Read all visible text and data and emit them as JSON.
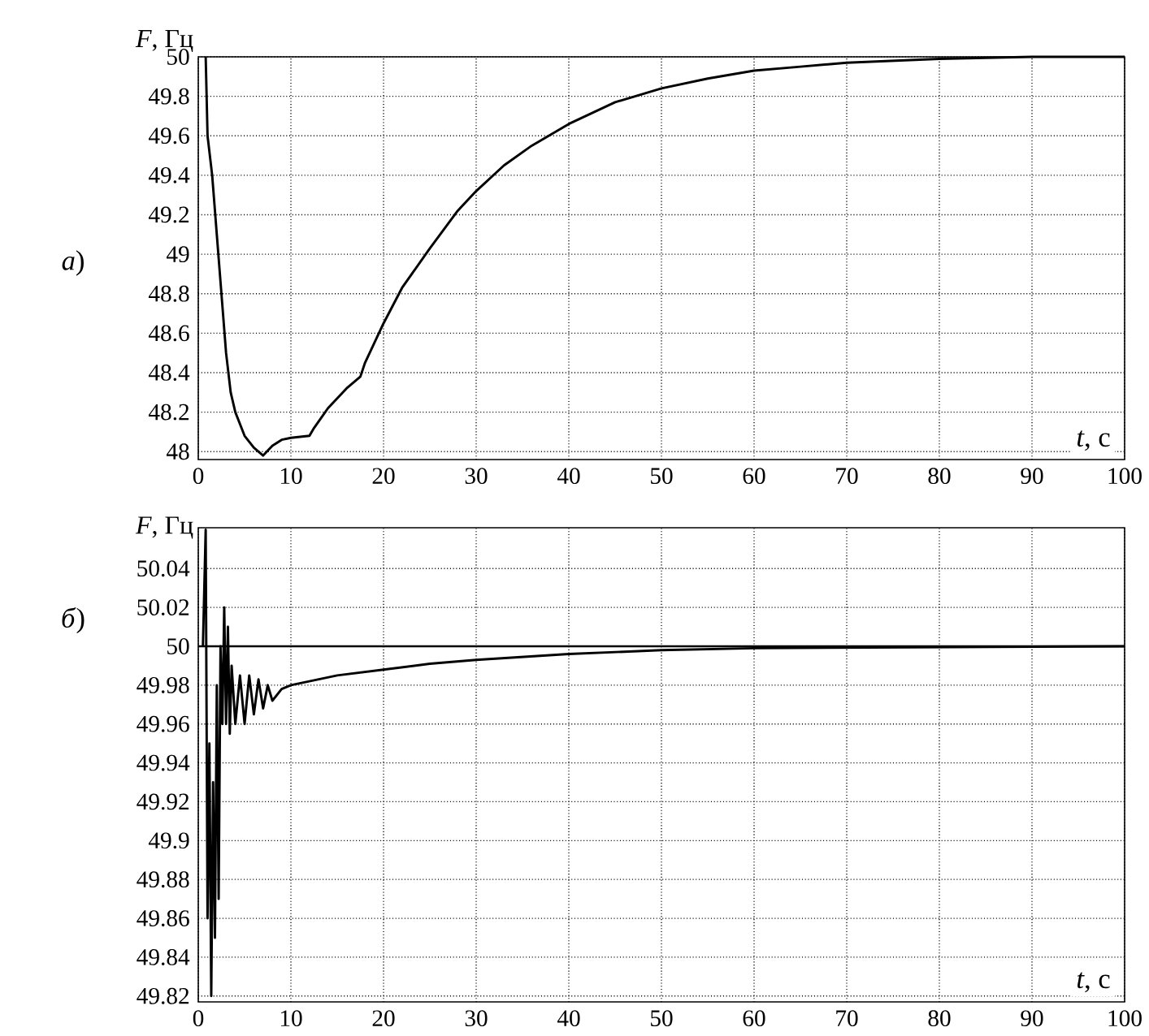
{
  "chart_data": [
    {
      "type": "line",
      "xlabel": "*t*, с",
      "ylabel": "*F*, Гц",
      "annotations": [
        "*а*)"
      ],
      "xlim": [
        0,
        100
      ],
      "ylim": [
        47.96,
        50
      ],
      "xticks": [
        0,
        10,
        20,
        30,
        40,
        50,
        60,
        70,
        80,
        90,
        100
      ],
      "yticks": [
        48,
        48.2,
        48.4,
        48.6,
        48.8,
        49,
        49.2,
        49.4,
        49.6,
        49.8,
        50
      ],
      "grid": true,
      "line_style": "solid",
      "series": [
        {
          "color": "#000000",
          "x": [
            0.8,
            1,
            1.5,
            2,
            2.5,
            3,
            3.5,
            4,
            5,
            6,
            7,
            8,
            9,
            10,
            12,
            12.5,
            14,
            16,
            17.5,
            18,
            20,
            22,
            25,
            28,
            30,
            33,
            36,
            40,
            45,
            50,
            55,
            60,
            65,
            70,
            80,
            90,
            100
          ],
          "values": [
            50,
            49.6,
            49.4,
            49.1,
            48.8,
            48.5,
            48.3,
            48.2,
            48.08,
            48.02,
            47.98,
            48.03,
            48.06,
            48.07,
            48.08,
            48.12,
            48.22,
            48.32,
            48.38,
            48.45,
            48.65,
            48.83,
            49.03,
            49.22,
            49.32,
            49.45,
            49.55,
            49.66,
            49.77,
            49.84,
            49.89,
            49.93,
            49.95,
            49.97,
            49.99,
            50,
            50
          ]
        }
      ]
    },
    {
      "type": "line",
      "xlabel": "*t*, с",
      "ylabel": "*F*, Гц",
      "annotations": [
        "*б*)"
      ],
      "xlim": [
        0,
        100
      ],
      "ylim": [
        49.817,
        50.061
      ],
      "xticks": [
        0,
        10,
        20,
        30,
        40,
        50,
        60,
        70,
        80,
        90,
        100
      ],
      "yticks": [
        49.82,
        49.84,
        49.86,
        49.88,
        49.9,
        49.92,
        49.94,
        49.96,
        49.98,
        50,
        50.02,
        50.04
      ],
      "grid": true,
      "line_style": "solid",
      "ref_lines": [
        {
          "axis": "y",
          "value": 50,
          "color": "#000000"
        }
      ],
      "series": [
        {
          "color": "#000000",
          "x": [
            0.5,
            0.8,
            1,
            1.2,
            1.4,
            1.6,
            1.8,
            2,
            2.2,
            2.4,
            2.6,
            2.8,
            3,
            3.2,
            3.4,
            3.6,
            4,
            4.5,
            5,
            5.5,
            6,
            6.5,
            7,
            7.5,
            8,
            9,
            10,
            15,
            20,
            25,
            30,
            40,
            50,
            60,
            100
          ],
          "values": [
            50,
            50.06,
            49.86,
            49.95,
            49.82,
            49.93,
            49.85,
            49.98,
            49.87,
            50,
            49.96,
            50.02,
            49.96,
            50.01,
            49.955,
            49.99,
            49.96,
            49.985,
            49.96,
            49.985,
            49.965,
            49.983,
            49.968,
            49.98,
            49.972,
            49.978,
            49.98,
            49.985,
            49.988,
            49.991,
            49.993,
            49.996,
            49.998,
            49.999,
            50
          ]
        }
      ]
    }
  ]
}
